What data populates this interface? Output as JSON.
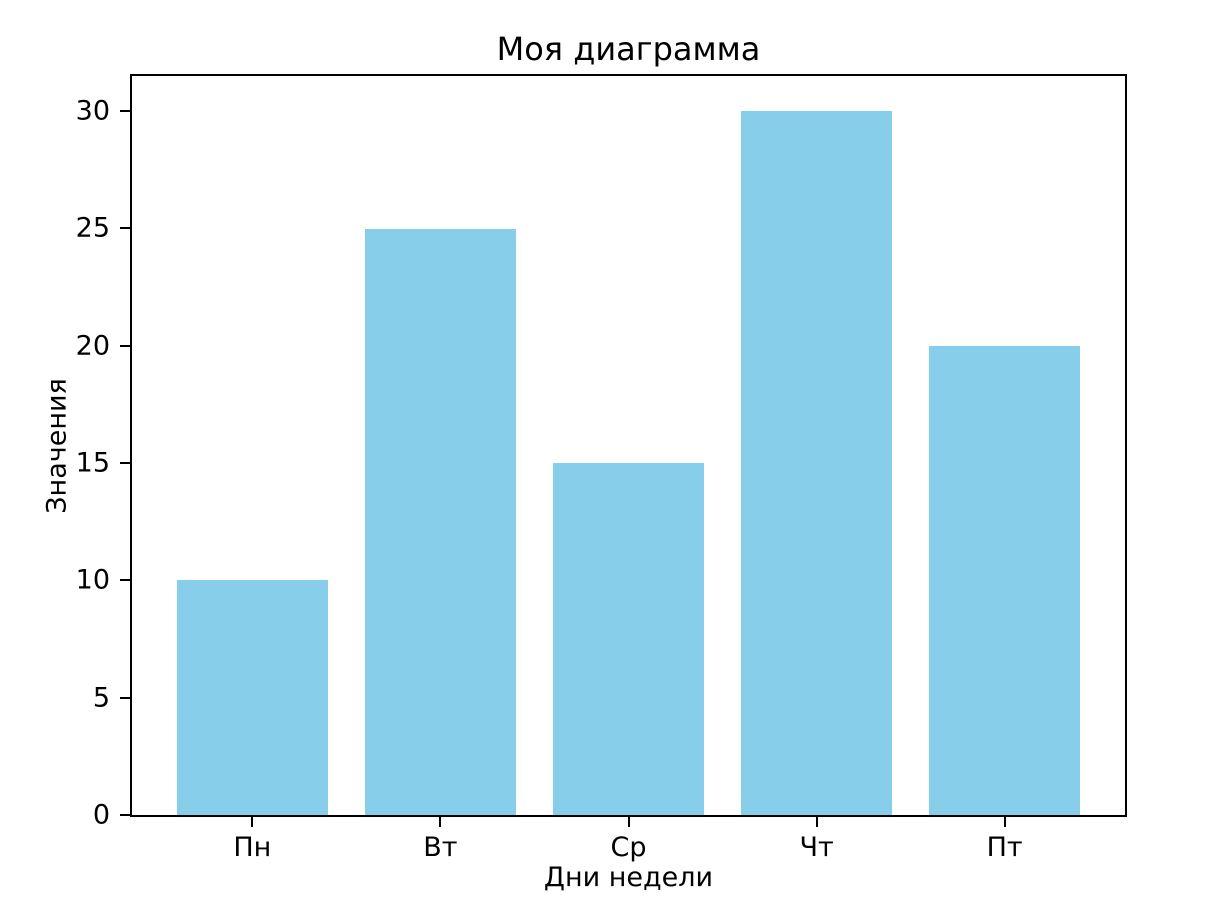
{
  "chart_data": {
    "type": "bar",
    "title": "Моя диаграмма",
    "xlabel": "Дни недели",
    "ylabel": "Значения",
    "categories": [
      "Пн",
      "Вт",
      "Ср",
      "Чт",
      "Пт"
    ],
    "values": [
      10,
      25,
      15,
      30,
      20
    ],
    "yticks": [
      0,
      5,
      10,
      15,
      20,
      25,
      30
    ],
    "ylim": [
      0,
      31.5
    ],
    "xlim": [
      -0.64,
      4.64
    ],
    "bar_width": 0.8,
    "bar_color": "#87CEEB",
    "axis_color": "#000000",
    "background_color": "#ffffff",
    "grid": false,
    "legend_position": "none"
  }
}
